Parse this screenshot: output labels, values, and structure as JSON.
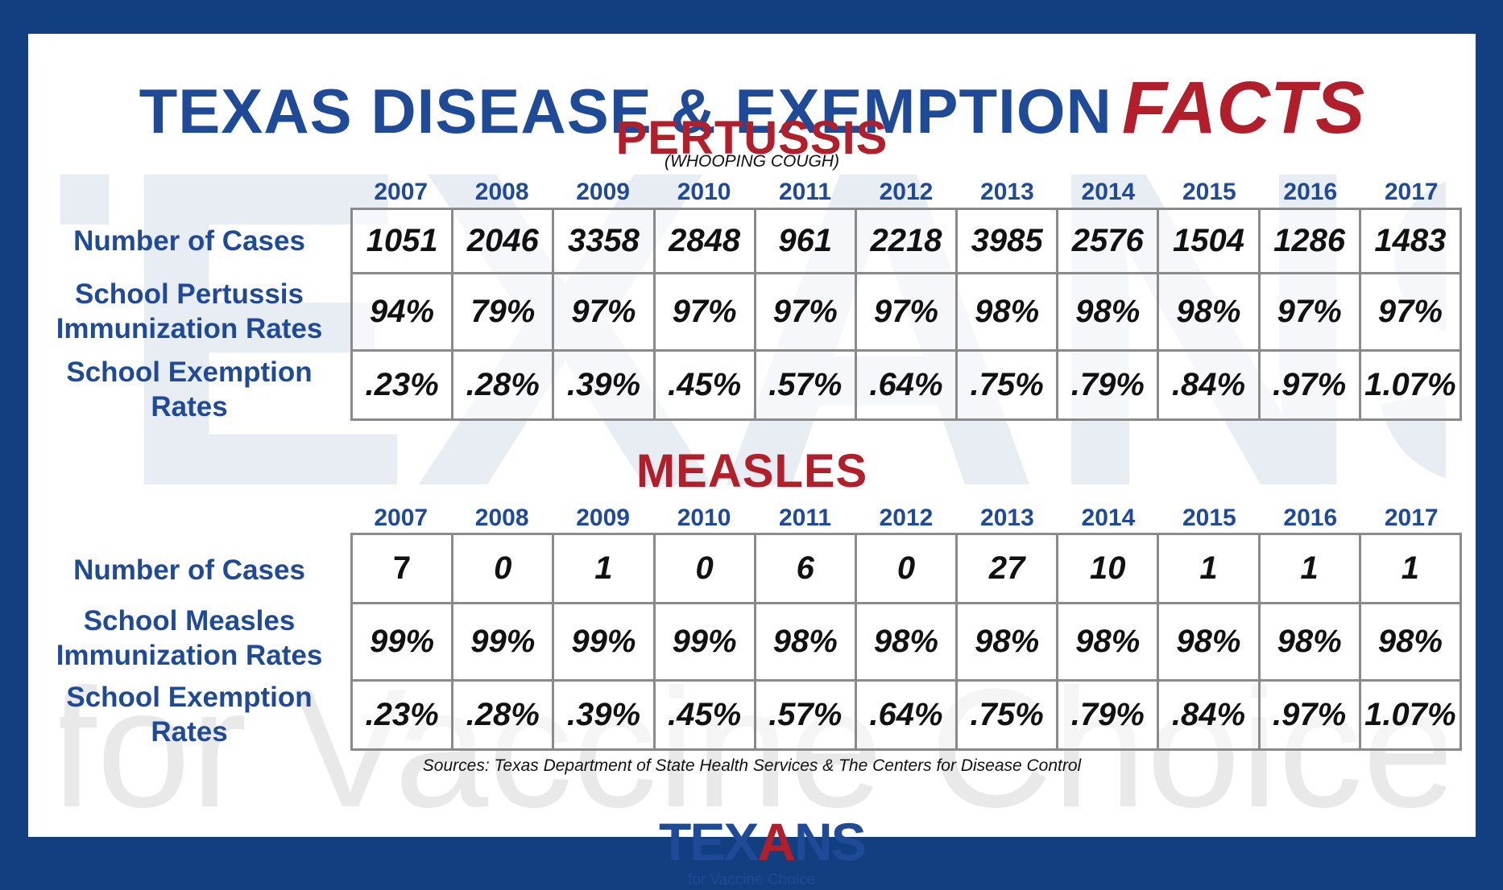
{
  "title": {
    "main": "TEXAS DISEASE & EXEMPTION",
    "accent": "FACTS"
  },
  "watermark": {
    "word": "TEXANS",
    "tagline": "for Vaccine Choice"
  },
  "pertussis": {
    "heading": "PERTUSSIS",
    "subheading": "(WHOOPING COUGH)",
    "years": [
      "2007",
      "2008",
      "2009",
      "2010",
      "2011",
      "2012",
      "2013",
      "2014",
      "2015",
      "2016",
      "2017"
    ],
    "labels": {
      "cases": "Number of Cases",
      "immunization_1": "School Pertussis",
      "immunization_2": "Immunization Rates",
      "exemption_1": "School Exemption",
      "exemption_2": "Rates"
    },
    "cases": [
      "1051",
      "2046",
      "3358",
      "2848",
      "961",
      "2218",
      "3985",
      "2576",
      "1504",
      "1286",
      "1483"
    ],
    "immunization": [
      "94%",
      "79%",
      "97%",
      "97%",
      "97%",
      "97%",
      "98%",
      "98%",
      "98%",
      "97%",
      "97%"
    ],
    "exemption": [
      ".23%",
      ".28%",
      ".39%",
      ".45%",
      ".57%",
      ".64%",
      ".75%",
      ".79%",
      ".84%",
      ".97%",
      "1.07%"
    ]
  },
  "measles": {
    "heading": "MEASLES",
    "years": [
      "2007",
      "2008",
      "2009",
      "2010",
      "2011",
      "2012",
      "2013",
      "2014",
      "2015",
      "2016",
      "2017"
    ],
    "labels": {
      "cases": "Number of Cases",
      "immunization_1": "School Measles",
      "immunization_2": "Immunization Rates",
      "exemption_1": "School Exemption",
      "exemption_2": "Rates"
    },
    "cases": [
      "7",
      "0",
      "1",
      "0",
      "6",
      "0",
      "27",
      "10",
      "1",
      "1",
      "1"
    ],
    "immunization": [
      "99%",
      "99%",
      "99%",
      "99%",
      "98%",
      "98%",
      "98%",
      "98%",
      "98%",
      "98%",
      "98%"
    ],
    "exemption": [
      ".23%",
      ".28%",
      ".39%",
      ".45%",
      ".57%",
      ".64%",
      ".75%",
      ".79%",
      ".84%",
      ".97%",
      "1.07%"
    ]
  },
  "source": "Sources: Texas Department of State Health Services & The Centers for Disease Control",
  "logo": {
    "word_blue_1": "TEX",
    "word_red": "A",
    "word_blue_2": "NS",
    "tagline": "for Vaccine Choice"
  },
  "colors": {
    "navy": "#123f80",
    "blue": "#1f4a98",
    "red": "#b21e2a"
  }
}
